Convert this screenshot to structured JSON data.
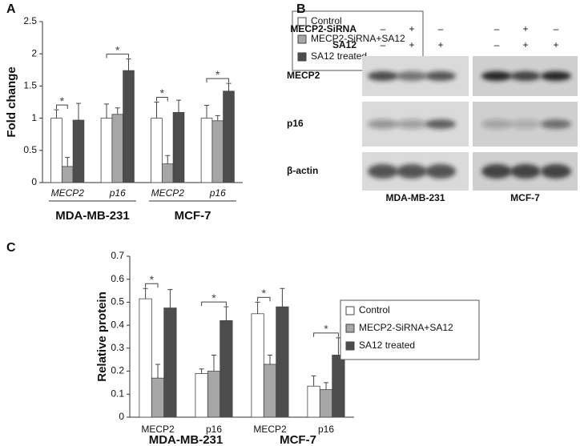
{
  "chart_data": [
    {
      "type": "bar",
      "panel_label": "A",
      "ylabel": "Fold change",
      "categories": [
        "MECP2",
        "p16",
        "MECP2",
        "p16"
      ],
      "groups": [
        "MDA-MB-231",
        "MCF-7"
      ],
      "series": [
        {
          "name": "Control",
          "color": "#ffffff",
          "values": [
            1.0,
            1.0,
            1.0,
            1.0
          ],
          "errors": [
            0.13,
            0.22,
            0.25,
            0.2
          ]
        },
        {
          "name": "MECP2-SiRNA+SA12",
          "color": "#a6a6a6",
          "values": [
            0.25,
            1.06,
            0.29,
            0.96
          ],
          "errors": [
            0.14,
            0.1,
            0.13,
            0.08
          ]
        },
        {
          "name": "SA12 treated",
          "color": "#4d4d4d",
          "values": [
            0.97,
            1.74,
            1.09,
            1.42
          ],
          "errors": [
            0.26,
            0.18,
            0.19,
            0.12
          ]
        }
      ],
      "annotations": [
        "*",
        "*",
        "*",
        "*"
      ],
      "ylim": [
        0,
        2.5
      ],
      "yticks": [
        0,
        0.5,
        1,
        1.5,
        2,
        2.5
      ],
      "legend": "upper right"
    },
    {
      "type": "bar",
      "panel_label": "C",
      "ylabel": "Relative protein",
      "categories": [
        "MECP2",
        "p16",
        "MECP2",
        "p16"
      ],
      "groups": [
        "MDA-MB-231",
        "MCF-7"
      ],
      "series": [
        {
          "name": "Control",
          "color": "#ffffff",
          "values": [
            0.515,
            0.19,
            0.45,
            0.135
          ],
          "errors": [
            0.045,
            0.02,
            0.05,
            0.045
          ]
        },
        {
          "name": "MECP2-SiRNA+SA12",
          "color": "#a6a6a6",
          "values": [
            0.17,
            0.2,
            0.23,
            0.12
          ],
          "errors": [
            0.06,
            0.07,
            0.04,
            0.03
          ]
        },
        {
          "name": "SA12 treated",
          "color": "#4d4d4d",
          "values": [
            0.475,
            0.42,
            0.48,
            0.27
          ],
          "errors": [
            0.08,
            0.06,
            0.08,
            0.075
          ]
        }
      ],
      "annotations": [
        "*",
        "*",
        "*",
        "*"
      ],
      "ylim": [
        0,
        0.7
      ],
      "yticks": [
        0,
        0.1,
        0.2,
        0.3,
        0.4,
        0.5,
        0.6,
        0.7
      ],
      "legend": "right"
    }
  ],
  "blot": {
    "panel_label": "B",
    "treatments": [
      {
        "name": "MECP2-SiRNA",
        "signs": [
          "–",
          "+",
          "–",
          "–",
          "+",
          "–"
        ]
      },
      {
        "name": "SA12",
        "signs": [
          "–",
          "+",
          "+",
          "–",
          "+",
          "+"
        ]
      }
    ],
    "rows": [
      "MECP2",
      "p16",
      "β-actin"
    ],
    "cell_lines": [
      "MDA-MB-231",
      "MCF-7"
    ]
  }
}
